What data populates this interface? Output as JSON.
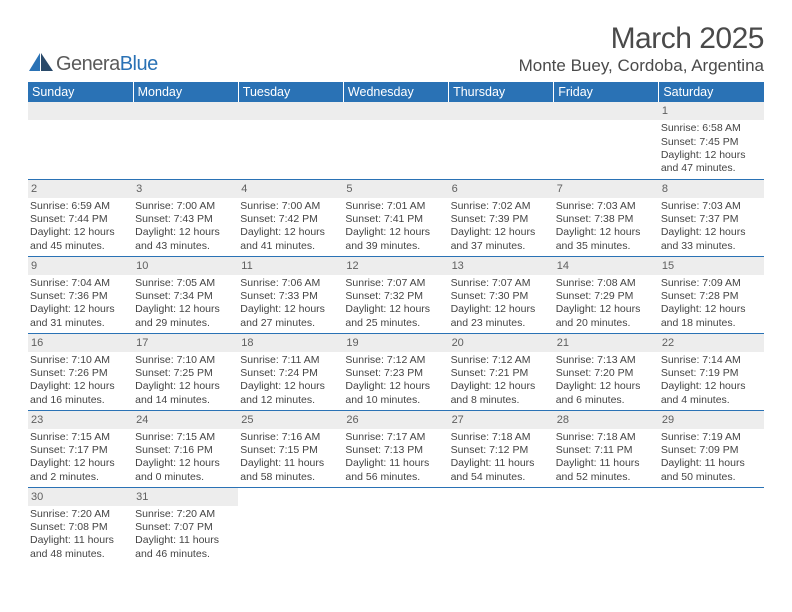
{
  "logo": {
    "textDark": "Genera",
    "textBlue": "Blue"
  },
  "title": "March 2025",
  "location": "Monte Buey, Cordoba, Argentina",
  "weekdays": [
    "Sunday",
    "Monday",
    "Tuesday",
    "Wednesday",
    "Thursday",
    "Friday",
    "Saturday"
  ],
  "colors": {
    "headerBg": "#2a72b5",
    "ruleColor": "#2a72b5",
    "dayBg": "#ededed"
  },
  "startWeekday": 6,
  "days": [
    {
      "n": "1",
      "sr": "6:58 AM",
      "ss": "7:45 PM",
      "dl1": "12 hours",
      "dl2": "and 47 minutes."
    },
    {
      "n": "2",
      "sr": "6:59 AM",
      "ss": "7:44 PM",
      "dl1": "12 hours",
      "dl2": "and 45 minutes."
    },
    {
      "n": "3",
      "sr": "7:00 AM",
      "ss": "7:43 PM",
      "dl1": "12 hours",
      "dl2": "and 43 minutes."
    },
    {
      "n": "4",
      "sr": "7:00 AM",
      "ss": "7:42 PM",
      "dl1": "12 hours",
      "dl2": "and 41 minutes."
    },
    {
      "n": "5",
      "sr": "7:01 AM",
      "ss": "7:41 PM",
      "dl1": "12 hours",
      "dl2": "and 39 minutes."
    },
    {
      "n": "6",
      "sr": "7:02 AM",
      "ss": "7:39 PM",
      "dl1": "12 hours",
      "dl2": "and 37 minutes."
    },
    {
      "n": "7",
      "sr": "7:03 AM",
      "ss": "7:38 PM",
      "dl1": "12 hours",
      "dl2": "and 35 minutes."
    },
    {
      "n": "8",
      "sr": "7:03 AM",
      "ss": "7:37 PM",
      "dl1": "12 hours",
      "dl2": "and 33 minutes."
    },
    {
      "n": "9",
      "sr": "7:04 AM",
      "ss": "7:36 PM",
      "dl1": "12 hours",
      "dl2": "and 31 minutes."
    },
    {
      "n": "10",
      "sr": "7:05 AM",
      "ss": "7:34 PM",
      "dl1": "12 hours",
      "dl2": "and 29 minutes."
    },
    {
      "n": "11",
      "sr": "7:06 AM",
      "ss": "7:33 PM",
      "dl1": "12 hours",
      "dl2": "and 27 minutes."
    },
    {
      "n": "12",
      "sr": "7:07 AM",
      "ss": "7:32 PM",
      "dl1": "12 hours",
      "dl2": "and 25 minutes."
    },
    {
      "n": "13",
      "sr": "7:07 AM",
      "ss": "7:30 PM",
      "dl1": "12 hours",
      "dl2": "and 23 minutes."
    },
    {
      "n": "14",
      "sr": "7:08 AM",
      "ss": "7:29 PM",
      "dl1": "12 hours",
      "dl2": "and 20 minutes."
    },
    {
      "n": "15",
      "sr": "7:09 AM",
      "ss": "7:28 PM",
      "dl1": "12 hours",
      "dl2": "and 18 minutes."
    },
    {
      "n": "16",
      "sr": "7:10 AM",
      "ss": "7:26 PM",
      "dl1": "12 hours",
      "dl2": "and 16 minutes."
    },
    {
      "n": "17",
      "sr": "7:10 AM",
      "ss": "7:25 PM",
      "dl1": "12 hours",
      "dl2": "and 14 minutes."
    },
    {
      "n": "18",
      "sr": "7:11 AM",
      "ss": "7:24 PM",
      "dl1": "12 hours",
      "dl2": "and 12 minutes."
    },
    {
      "n": "19",
      "sr": "7:12 AM",
      "ss": "7:23 PM",
      "dl1": "12 hours",
      "dl2": "and 10 minutes."
    },
    {
      "n": "20",
      "sr": "7:12 AM",
      "ss": "7:21 PM",
      "dl1": "12 hours",
      "dl2": "and 8 minutes."
    },
    {
      "n": "21",
      "sr": "7:13 AM",
      "ss": "7:20 PM",
      "dl1": "12 hours",
      "dl2": "and 6 minutes."
    },
    {
      "n": "22",
      "sr": "7:14 AM",
      "ss": "7:19 PM",
      "dl1": "12 hours",
      "dl2": "and 4 minutes."
    },
    {
      "n": "23",
      "sr": "7:15 AM",
      "ss": "7:17 PM",
      "dl1": "12 hours",
      "dl2": "and 2 minutes."
    },
    {
      "n": "24",
      "sr": "7:15 AM",
      "ss": "7:16 PM",
      "dl1": "12 hours",
      "dl2": "and 0 minutes."
    },
    {
      "n": "25",
      "sr": "7:16 AM",
      "ss": "7:15 PM",
      "dl1": "11 hours",
      "dl2": "and 58 minutes."
    },
    {
      "n": "26",
      "sr": "7:17 AM",
      "ss": "7:13 PM",
      "dl1": "11 hours",
      "dl2": "and 56 minutes."
    },
    {
      "n": "27",
      "sr": "7:18 AM",
      "ss": "7:12 PM",
      "dl1": "11 hours",
      "dl2": "and 54 minutes."
    },
    {
      "n": "28",
      "sr": "7:18 AM",
      "ss": "7:11 PM",
      "dl1": "11 hours",
      "dl2": "and 52 minutes."
    },
    {
      "n": "29",
      "sr": "7:19 AM",
      "ss": "7:09 PM",
      "dl1": "11 hours",
      "dl2": "and 50 minutes."
    },
    {
      "n": "30",
      "sr": "7:20 AM",
      "ss": "7:08 PM",
      "dl1": "11 hours",
      "dl2": "and 48 minutes."
    },
    {
      "n": "31",
      "sr": "7:20 AM",
      "ss": "7:07 PM",
      "dl1": "11 hours",
      "dl2": "and 46 minutes."
    }
  ]
}
